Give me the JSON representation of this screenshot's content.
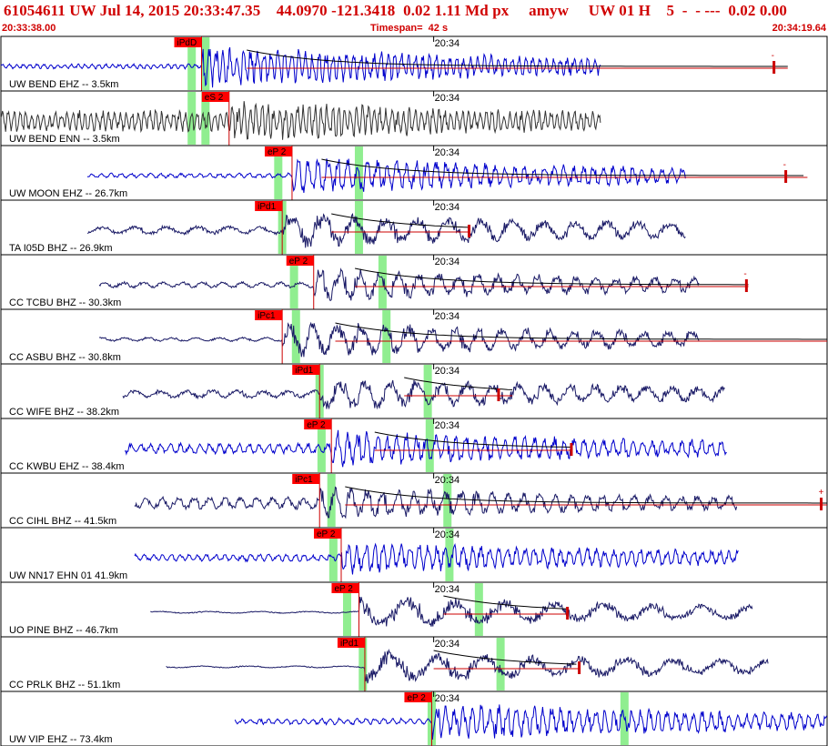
{
  "header": {
    "title": "61054611 UW Jul 14, 2015 20:33:47.35    44.0970 -121.3418  0.02 1.11 Md px     amyw     UW 01 H    5  -  - ---  0.02 0.00",
    "start_time": "20:33:38.00",
    "timespan": "Timespan=  42 s",
    "end_time": "20:34:19.64"
  },
  "colors": {
    "header_text": "#d00000",
    "pick_flag": "#ff0000",
    "pick_line": "#cc0000",
    "phase_window": "#90ee90",
    "trace_blue": "#0000cc",
    "trace_navy": "#1a1a66",
    "trace_black": "#333333",
    "coda_fit": "#000000",
    "panel_border": "#000000"
  },
  "chart_data": {
    "type": "seismogram_stack",
    "time_range_s": [
      0,
      42
    ],
    "minute_tick_label": "20:34",
    "minute_tick_time_s": 22,
    "panels": [
      {
        "station_label": "UW BEND EHZ -- 3.5km",
        "trace_color": "blue",
        "trace_start_s": 0,
        "trace_end_s": 30.5,
        "noise": 0.12,
        "amplitude": 1.0,
        "period_s": 0.35,
        "pick": {
          "label": "iPdD",
          "time_s": 10.2
        },
        "green_windows_s": [
          9.7,
          10.4
        ],
        "coda": {
          "from_s": 12.5,
          "to_s": 40.0
        },
        "end_marker_s": 39.3,
        "trace_end_mark": "-"
      },
      {
        "station_label": "UW BEND ENN -- 3.5km",
        "trace_color": "black",
        "trace_start_s": 0,
        "trace_end_s": 30.5,
        "noise": 0.5,
        "amplitude": 1.0,
        "period_s": 0.3,
        "pick": {
          "label": "eS 2",
          "time_s": 11.6
        },
        "green_windows_s": [
          9.7,
          10.4
        ],
        "coda": null,
        "end_marker_s": null,
        "trace_end_mark": ""
      },
      {
        "station_label": "UW MOON EHZ -- 26.7km",
        "trace_color": "blue",
        "trace_start_s": 4.4,
        "trace_end_s": 34.8,
        "noise": 0.12,
        "amplitude": 0.9,
        "period_s": 0.5,
        "pick": {
          "label": "eP 2",
          "time_s": 14.8
        },
        "green_windows_s": [
          14.1,
          18.2
        ],
        "coda": {
          "from_s": 16.3,
          "to_s": 41.0
        },
        "end_marker_s": 39.9,
        "trace_end_mark": "-"
      },
      {
        "station_label": "TA I05D BHZ -- 26.9km",
        "trace_color": "navy",
        "trace_start_s": 4.4,
        "trace_end_s": 34.8,
        "noise": 0.2,
        "amplitude": 0.9,
        "period_s": 1.6,
        "pick": {
          "label": "iPd1",
          "time_s": 14.3
        },
        "green_windows_s": [
          14.3,
          18.2
        ],
        "coda": {
          "from_s": 16.8,
          "to_s": 23.8
        },
        "end_marker_s": 23.8,
        "trace_end_mark": ""
      },
      {
        "station_label": "CC TCBU BHZ -- 30.3km",
        "trace_color": "navy",
        "trace_start_s": 5.0,
        "trace_end_s": 35.5,
        "noise": 0.15,
        "amplitude": 0.8,
        "period_s": 1.0,
        "pick": {
          "label": "eP 2",
          "time_s": 15.9
        },
        "green_windows_s": [
          14.9,
          19.4
        ],
        "coda": {
          "from_s": 18.0,
          "to_s": 38.0
        },
        "end_marker_s": 37.9,
        "trace_end_mark": "-"
      },
      {
        "station_label": "CC ASBU BHZ -- 30.8km",
        "trace_color": "navy",
        "trace_start_s": 5.0,
        "trace_end_s": 35.5,
        "noise": 0.1,
        "amplitude": 0.9,
        "period_s": 1.2,
        "pick": {
          "label": "iPc1",
          "time_s": 14.3
        },
        "green_windows_s": [
          15.0,
          19.6
        ],
        "coda": {
          "from_s": 17.0,
          "to_s": 42.0
        },
        "end_marker_s": null,
        "trace_end_mark": ""
      },
      {
        "station_label": "CC WIFE BHZ -- 38.2km",
        "trace_color": "navy",
        "trace_start_s": 6.2,
        "trace_end_s": 36.8,
        "noise": 0.2,
        "amplitude": 0.8,
        "period_s": 1.3,
        "pick": {
          "label": "iPd1",
          "time_s": 16.2
        },
        "green_windows_s": [
          16.2,
          21.7
        ],
        "coda": {
          "from_s": 20.5,
          "to_s": 26.0
        },
        "end_marker_s": 25.3,
        "trace_end_mark": ""
      },
      {
        "station_label": "CC KWBU EHZ -- 38.4km",
        "trace_color": "blue",
        "trace_start_s": 6.3,
        "trace_end_s": 36.9,
        "noise": 0.25,
        "amplitude": 0.9,
        "period_s": 0.5,
        "pick": {
          "label": "eP 2",
          "time_s": 16.8
        },
        "green_windows_s": [
          16.3,
          21.8
        ],
        "coda": {
          "from_s": 19.0,
          "to_s": 29.0
        },
        "end_marker_s": 29.0,
        "trace_end_mark": ""
      },
      {
        "station_label": "CC CIHL BHZ -- 41.5km",
        "trace_color": "navy",
        "trace_start_s": 6.8,
        "trace_end_s": 37.4,
        "noise": 0.3,
        "amplitude": 0.8,
        "period_s": 0.8,
        "pick": {
          "label": "iPc1",
          "time_s": 16.2
        },
        "green_windows_s": [
          16.8,
          22.7
        ],
        "coda": {
          "from_s": 17.5,
          "to_s": 42.0
        },
        "end_marker_s": 41.7,
        "trace_end_mark": "+"
      },
      {
        "station_label": "UW NN17 EHN 01 41.9km",
        "trace_color": "blue",
        "trace_start_s": 6.8,
        "trace_end_s": 37.5,
        "noise": 0.18,
        "amplitude": 0.8,
        "period_s": 0.45,
        "pick": {
          "label": "eP 2",
          "time_s": 17.3
        },
        "green_windows_s": [
          16.9,
          22.8
        ],
        "coda": null,
        "end_marker_s": null,
        "trace_end_mark": ""
      },
      {
        "station_label": "UO PINE BHZ -- 46.7km",
        "trace_color": "navy",
        "trace_start_s": 7.6,
        "trace_end_s": 38.2,
        "noise": 0.05,
        "amplitude": 0.8,
        "period_s": 2.5,
        "pick": {
          "label": "eP 2",
          "time_s": 18.2
        },
        "green_windows_s": [
          17.6,
          24.3
        ],
        "coda": {
          "from_s": 22.5,
          "to_s": 28.8
        },
        "end_marker_s": 28.8,
        "trace_end_mark": ""
      },
      {
        "station_label": "CC PRLK BHZ -- 51.1km",
        "trace_color": "navy",
        "trace_start_s": 8.4,
        "trace_end_s": 39.0,
        "noise": 0.05,
        "amplitude": 0.8,
        "period_s": 2.4,
        "pick": {
          "label": "iPd1",
          "time_s": 18.5
        },
        "green_windows_s": [
          18.4,
          25.4
        ],
        "coda": {
          "from_s": 22.0,
          "to_s": 29.4
        },
        "end_marker_s": 29.4,
        "trace_end_mark": ""
      },
      {
        "station_label": "UW VIP EHZ -- 73.4km",
        "trace_color": "blue",
        "trace_start_s": 11.9,
        "trace_end_s": 42.0,
        "noise": 0.15,
        "amplitude": 0.9,
        "period_s": 0.45,
        "pick": {
          "label": "eP 2",
          "time_s": 21.9
        },
        "green_windows_s": [
          21.9,
          31.7
        ],
        "coda": null,
        "end_marker_s": null,
        "trace_end_mark": ""
      }
    ]
  }
}
